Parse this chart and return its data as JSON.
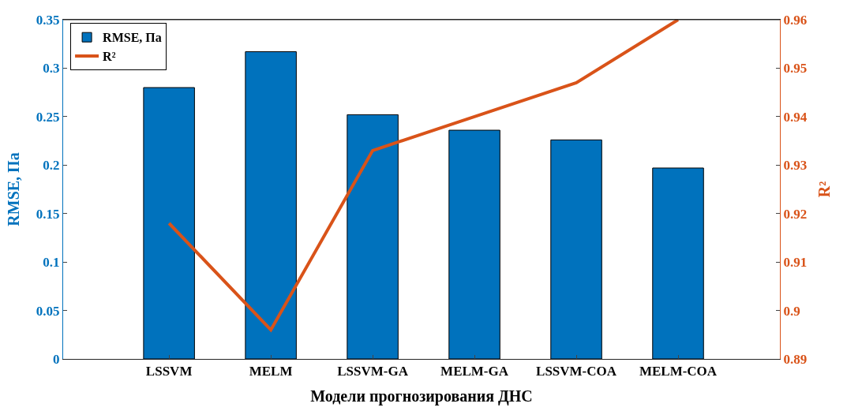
{
  "chart_data": {
    "type": "bar",
    "xlabel": "Модели прогнозирования ДНС",
    "ylabel": "RMSE, Па",
    "y2label": "R²",
    "categories": [
      null,
      "LSSVM",
      "MELM",
      "LSSVM-GA",
      "MELM-GA",
      "LSSVM-COA",
      "MELM-COA",
      null
    ],
    "series": [
      {
        "name": "RMSE, Па",
        "color": "#0072bd",
        "values": [
          null,
          0.28,
          0.317,
          0.252,
          0.236,
          0.226,
          0.197,
          null
        ]
      },
      {
        "name": "R²",
        "type": "line",
        "axis": "y2",
        "color": "#d95319",
        "values": [
          null,
          0.918,
          0.896,
          0.933,
          0.94,
          0.947,
          0.96,
          null
        ]
      }
    ],
    "ylim": [
      0,
      0.35
    ],
    "yticks": [
      0,
      0.05,
      0.1,
      0.15,
      0.2,
      0.25,
      0.3,
      0.35
    ],
    "y2lim": [
      0.89,
      0.96
    ],
    "y2ticks": [
      0.89,
      0.9,
      0.91,
      0.92,
      0.93,
      0.94,
      0.95,
      0.96
    ],
    "legend": "top left",
    "marker": "none",
    "line_style": "solid"
  }
}
